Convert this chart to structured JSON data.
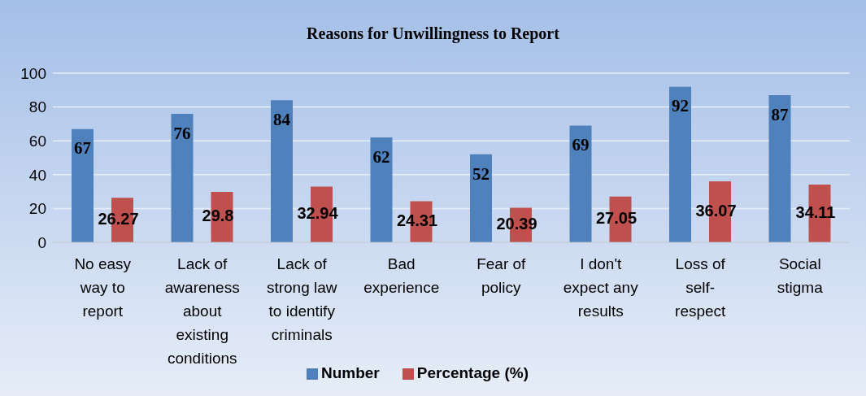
{
  "chart_data": {
    "type": "bar",
    "title": "Reasons for Unwillingness to Report",
    "categories": [
      "No easy way to report",
      "Lack of awareness about existing conditions",
      "Lack of strong law to identify criminals",
      "Bad experience",
      "Fear of policy",
      "I don't expect any results",
      "Loss of self-respect",
      "Social stigma"
    ],
    "series": [
      {
        "name": "Number",
        "color": "#4f81bd",
        "values": [
          67,
          76,
          84,
          62,
          52,
          69,
          92,
          87
        ]
      },
      {
        "name": "Percentage (%)",
        "color": "#c0504d",
        "values": [
          26.27,
          29.8,
          32.94,
          24.31,
          20.39,
          27.05,
          36.07,
          34.11
        ]
      }
    ],
    "ylim": [
      0,
      100
    ],
    "yticks": [
      0,
      20,
      40,
      60,
      80,
      100
    ],
    "grid": "y",
    "legend": "bottom",
    "data_labels": true
  }
}
